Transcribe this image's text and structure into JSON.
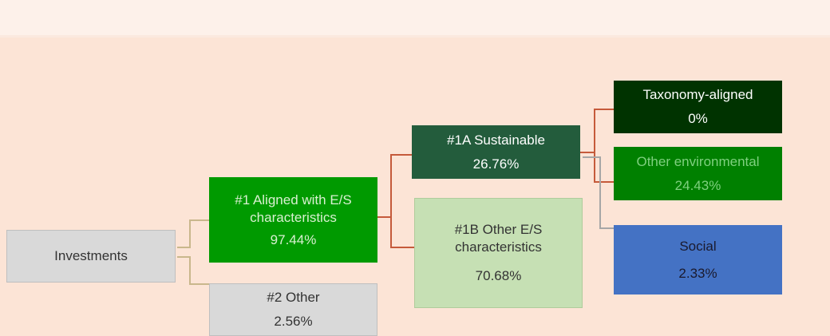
{
  "nodes": [
    {
      "lines": [
        "Investments"
      ]
    },
    {
      "lines": [
        "#1 Aligned with E/S",
        "characteristics",
        "97.44%"
      ]
    },
    {
      "lines": [
        "#2 Other",
        "2.56%"
      ]
    },
    {
      "lines": [
        "#1A Sustainable",
        "26.76%"
      ]
    },
    {
      "lines": [
        "#1B Other E/S",
        "characteristics",
        "70.68%"
      ]
    },
    {
      "lines": [
        "Taxonomy-aligned",
        "0%"
      ]
    },
    {
      "lines": [
        "Other environmental",
        "24.43%"
      ]
    },
    {
      "lines": [
        "Social",
        "2.33%"
      ]
    }
  ]
}
